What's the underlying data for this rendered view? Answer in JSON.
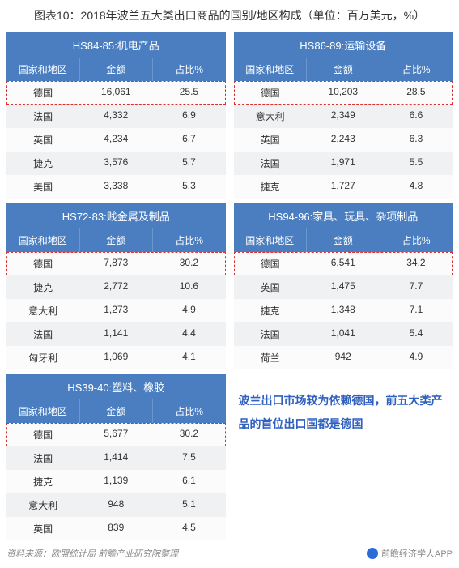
{
  "title": "图表10：2018年波兰五大类出口商品的国别/地区构成（单位：百万美元，%）",
  "colors": {
    "header_bg": "#4a7ec0",
    "header_fg": "#ffffff",
    "row_even": "#f0f1f2",
    "row_odd": "#fbfbfb",
    "highlight_border": "#d93030",
    "note_color": "#2f5fbf"
  },
  "columns": [
    "国家和地区",
    "金额",
    "占比%"
  ],
  "tables": [
    {
      "caption": "HS84-85:机电产品",
      "rows": [
        {
          "c": [
            "德国",
            "16,061",
            "25.5"
          ],
          "hl": true
        },
        {
          "c": [
            "法国",
            "4,332",
            "6.9"
          ]
        },
        {
          "c": [
            "英国",
            "4,234",
            "6.7"
          ]
        },
        {
          "c": [
            "捷克",
            "3,576",
            "5.7"
          ]
        },
        {
          "c": [
            "美国",
            "3,338",
            "5.3"
          ]
        }
      ]
    },
    {
      "caption": "HS86-89:运输设备",
      "rows": [
        {
          "c": [
            "德国",
            "10,203",
            "28.5"
          ],
          "hl": true
        },
        {
          "c": [
            "意大利",
            "2,349",
            "6.6"
          ]
        },
        {
          "c": [
            "英国",
            "2,243",
            "6.3"
          ]
        },
        {
          "c": [
            "法国",
            "1,971",
            "5.5"
          ]
        },
        {
          "c": [
            "捷克",
            "1,727",
            "4.8"
          ]
        }
      ]
    },
    {
      "caption": "HS72-83:贱金属及制品",
      "rows": [
        {
          "c": [
            "德国",
            "7,873",
            "30.2"
          ],
          "hl": true
        },
        {
          "c": [
            "捷克",
            "2,772",
            "10.6"
          ]
        },
        {
          "c": [
            "意大利",
            "1,273",
            "4.9"
          ]
        },
        {
          "c": [
            "法国",
            "1,141",
            "4.4"
          ]
        },
        {
          "c": [
            "匈牙利",
            "1,069",
            "4.1"
          ]
        }
      ]
    },
    {
      "caption": "HS94-96:家具、玩具、杂项制品",
      "rows": [
        {
          "c": [
            "德国",
            "6,541",
            "34.2"
          ],
          "hl": true
        },
        {
          "c": [
            "英国",
            "1,475",
            "7.7"
          ]
        },
        {
          "c": [
            "捷克",
            "1,348",
            "7.1"
          ]
        },
        {
          "c": [
            "法国",
            "1,041",
            "5.4"
          ]
        },
        {
          "c": [
            "荷兰",
            "942",
            "4.9"
          ]
        }
      ]
    },
    {
      "caption": "HS39-40:塑料、橡胶",
      "rows": [
        {
          "c": [
            "德国",
            "5,677",
            "30.2"
          ],
          "hl": true
        },
        {
          "c": [
            "法国",
            "1,414",
            "7.5"
          ]
        },
        {
          "c": [
            "捷克",
            "1,139",
            "6.1"
          ]
        },
        {
          "c": [
            "意大利",
            "948",
            "5.1"
          ]
        },
        {
          "c": [
            "英国",
            "839",
            "4.5"
          ]
        }
      ],
      "note": "波兰出口市场较为依赖德国，前五大类产品的首位出口国都是德国"
    }
  ],
  "footer": {
    "source": "资料来源：欧盟统计局 前瞻产业研究院整理",
    "attribution": "前瞻经济学人APP"
  }
}
